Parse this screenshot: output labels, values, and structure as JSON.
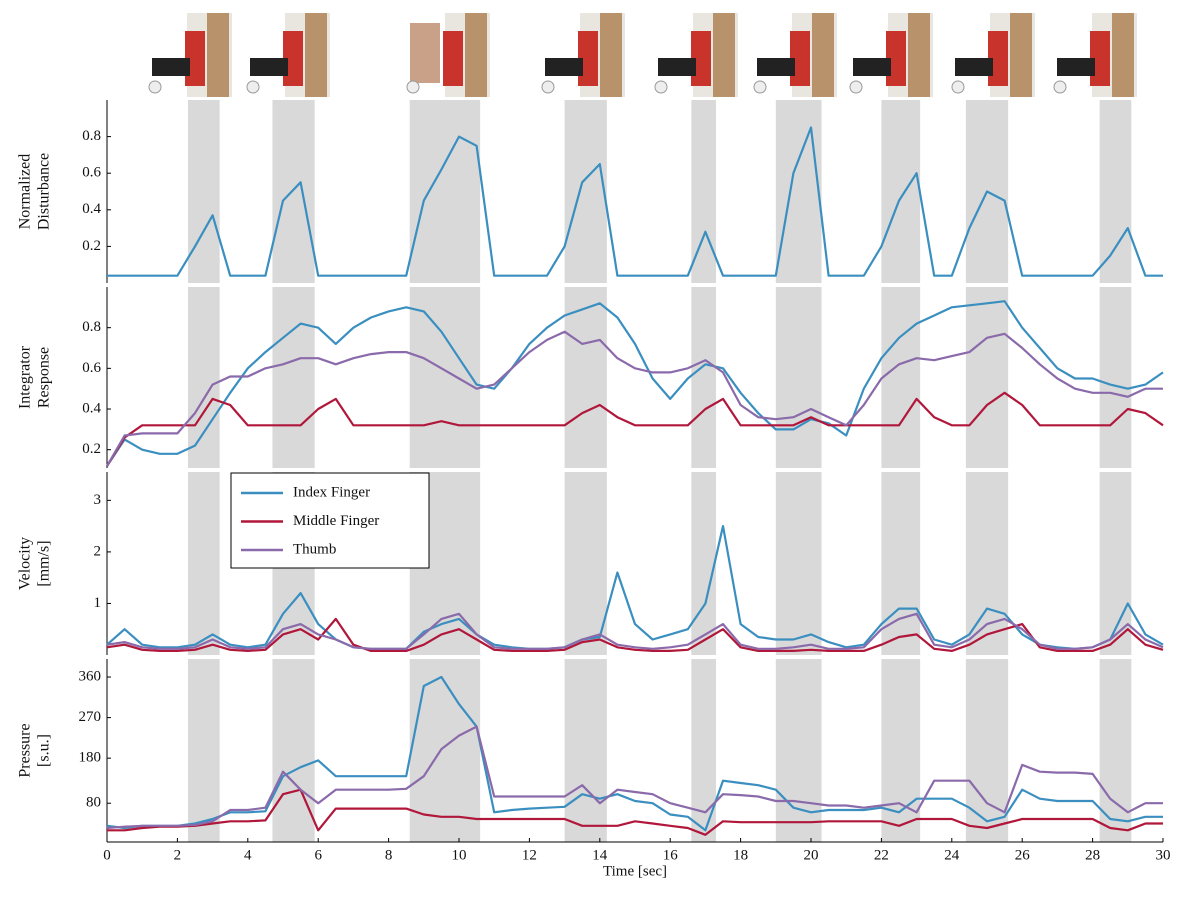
{
  "chart_data": [
    {
      "type": "line",
      "ylabel": [
        "Normalized",
        "Disturbance"
      ],
      "color": "#3a8fc0",
      "x": [
        0,
        0.5,
        1,
        1.5,
        2,
        2.5,
        3,
        3.5,
        4,
        4.5,
        5,
        5.5,
        6,
        6.5,
        7,
        7.5,
        8,
        8.5,
        9,
        9.5,
        10,
        10.5,
        11,
        11.5,
        12,
        12.5,
        13,
        13.5,
        14,
        14.5,
        15,
        15.5,
        16,
        16.5,
        17,
        17.5,
        18,
        18.5,
        19,
        19.5,
        20,
        20.5,
        21,
        21.5,
        22,
        22.5,
        23,
        23.5,
        24,
        24.5,
        25,
        25.5,
        26,
        26.5,
        27,
        27.5,
        28,
        28.5,
        29,
        29.5,
        30
      ],
      "values": [
        0.04,
        0.04,
        0.04,
        0.04,
        0.04,
        0.2,
        0.37,
        0.04,
        0.04,
        0.04,
        0.45,
        0.55,
        0.04,
        0.04,
        0.04,
        0.04,
        0.04,
        0.04,
        0.45,
        0.62,
        0.8,
        0.75,
        0.04,
        0.04,
        0.04,
        0.04,
        0.2,
        0.55,
        0.65,
        0.04,
        0.04,
        0.04,
        0.04,
        0.04,
        0.28,
        0.04,
        0.04,
        0.04,
        0.04,
        0.6,
        0.85,
        0.04,
        0.04,
        0.04,
        0.2,
        0.45,
        0.6,
        0.04,
        0.04,
        0.3,
        0.5,
        0.45,
        0.04,
        0.04,
        0.04,
        0.04,
        0.04,
        0.15,
        0.3,
        0.04,
        0.04
      ],
      "xlim": [
        0,
        30
      ],
      "ylim": [
        0,
        1.0
      ],
      "yticks": [
        0.2,
        0.4,
        0.6,
        0.8
      ],
      "highlight_spans": [
        [
          2.3,
          3.2
        ],
        [
          4.7,
          5.9
        ],
        [
          8.6,
          10.6
        ],
        [
          13.0,
          14.2
        ],
        [
          16.6,
          17.3
        ],
        [
          19.0,
          20.3
        ],
        [
          22.0,
          23.1
        ],
        [
          24.4,
          25.6
        ],
        [
          28.2,
          29.1
        ]
      ]
    },
    {
      "type": "line",
      "ylabel": [
        "Integrator",
        "Response"
      ],
      "x": [
        0,
        0.5,
        1,
        1.5,
        2,
        2.5,
        3,
        3.5,
        4,
        4.5,
        5,
        5.5,
        6,
        6.5,
        7,
        7.5,
        8,
        8.5,
        9,
        9.5,
        10,
        10.5,
        11,
        11.5,
        12,
        12.5,
        13,
        13.5,
        14,
        14.5,
        15,
        15.5,
        16,
        16.5,
        17,
        17.5,
        18,
        18.5,
        19,
        19.5,
        20,
        20.5,
        21,
        21.5,
        22,
        22.5,
        23,
        23.5,
        24,
        24.5,
        25,
        25.5,
        26,
        26.5,
        27,
        27.5,
        28,
        28.5,
        29,
        29.5,
        30
      ],
      "series": [
        {
          "color": "#3a8fc0",
          "values": [
            0.12,
            0.25,
            0.2,
            0.18,
            0.18,
            0.22,
            0.35,
            0.48,
            0.6,
            0.68,
            0.75,
            0.82,
            0.8,
            0.72,
            0.8,
            0.85,
            0.88,
            0.9,
            0.88,
            0.78,
            0.65,
            0.52,
            0.5,
            0.6,
            0.72,
            0.8,
            0.86,
            0.89,
            0.92,
            0.85,
            0.72,
            0.55,
            0.45,
            0.55,
            0.62,
            0.6,
            0.48,
            0.38,
            0.3,
            0.3,
            0.35,
            0.33,
            0.27,
            0.5,
            0.65,
            0.75,
            0.82,
            0.86,
            0.9,
            0.91,
            0.92,
            0.93,
            0.8,
            0.7,
            0.6,
            0.55,
            0.55,
            0.52,
            0.5,
            0.52,
            0.58
          ]
        },
        {
          "color": "#b0173a",
          "values": [
            0.12,
            0.26,
            0.32,
            0.32,
            0.32,
            0.32,
            0.45,
            0.42,
            0.32,
            0.32,
            0.32,
            0.32,
            0.4,
            0.45,
            0.32,
            0.32,
            0.32,
            0.32,
            0.32,
            0.34,
            0.32,
            0.32,
            0.32,
            0.32,
            0.32,
            0.32,
            0.32,
            0.38,
            0.42,
            0.36,
            0.32,
            0.32,
            0.32,
            0.32,
            0.4,
            0.45,
            0.32,
            0.32,
            0.32,
            0.32,
            0.36,
            0.32,
            0.32,
            0.32,
            0.32,
            0.32,
            0.45,
            0.36,
            0.32,
            0.32,
            0.42,
            0.48,
            0.42,
            0.32,
            0.32,
            0.32,
            0.32,
            0.32,
            0.4,
            0.38,
            0.32
          ]
        },
        {
          "color": "#8a6aaa",
          "values": [
            0.12,
            0.27,
            0.28,
            0.28,
            0.28,
            0.38,
            0.52,
            0.56,
            0.56,
            0.6,
            0.62,
            0.65,
            0.65,
            0.62,
            0.65,
            0.67,
            0.68,
            0.68,
            0.65,
            0.6,
            0.55,
            0.5,
            0.52,
            0.6,
            0.68,
            0.74,
            0.78,
            0.72,
            0.74,
            0.65,
            0.6,
            0.58,
            0.58,
            0.6,
            0.64,
            0.58,
            0.42,
            0.36,
            0.35,
            0.36,
            0.4,
            0.36,
            0.32,
            0.42,
            0.55,
            0.62,
            0.65,
            0.64,
            0.66,
            0.68,
            0.75,
            0.77,
            0.7,
            0.62,
            0.55,
            0.5,
            0.48,
            0.48,
            0.46,
            0.5,
            0.5
          ]
        }
      ],
      "xlim": [
        0,
        30
      ],
      "ylim": [
        0.11,
        1.0
      ],
      "yticks": [
        0.2,
        0.4,
        0.6,
        0.8
      ],
      "highlight_spans": [
        [
          2.3,
          3.2
        ],
        [
          4.7,
          5.9
        ],
        [
          8.6,
          10.6
        ],
        [
          13.0,
          14.2
        ],
        [
          16.6,
          17.3
        ],
        [
          19.0,
          20.3
        ],
        [
          22.0,
          23.1
        ],
        [
          24.4,
          25.6
        ],
        [
          28.2,
          29.1
        ]
      ]
    },
    {
      "type": "line",
      "ylabel": [
        "Velocity",
        "[mm/s]"
      ],
      "legend": "upper left",
      "x": [
        0,
        0.5,
        1,
        1.5,
        2,
        2.5,
        3,
        3.5,
        4,
        4.5,
        5,
        5.5,
        6,
        6.5,
        7,
        7.5,
        8,
        8.5,
        9,
        9.5,
        10,
        10.5,
        11,
        11.5,
        12,
        12.5,
        13,
        13.5,
        14,
        14.5,
        15,
        15.5,
        16,
        16.5,
        17,
        17.5,
        18,
        18.5,
        19,
        19.5,
        20,
        20.5,
        21,
        21.5,
        22,
        22.5,
        23,
        23.5,
        24,
        24.5,
        25,
        25.5,
        26,
        26.5,
        27,
        27.5,
        28,
        28.5,
        29,
        29.5,
        30
      ],
      "series": [
        {
          "name": "Index Finger",
          "color": "#3a8fc0",
          "values": [
            0.2,
            0.5,
            0.2,
            0.15,
            0.15,
            0.2,
            0.4,
            0.2,
            0.15,
            0.2,
            0.8,
            1.2,
            0.6,
            0.3,
            0.15,
            0.12,
            0.12,
            0.12,
            0.45,
            0.6,
            0.7,
            0.4,
            0.2,
            0.15,
            0.12,
            0.12,
            0.15,
            0.3,
            0.35,
            1.6,
            0.6,
            0.3,
            0.4,
            0.5,
            1.0,
            2.5,
            0.6,
            0.35,
            0.3,
            0.3,
            0.4,
            0.25,
            0.15,
            0.2,
            0.6,
            0.9,
            0.9,
            0.3,
            0.2,
            0.4,
            0.9,
            0.8,
            0.4,
            0.2,
            0.15,
            0.12,
            0.15,
            0.3,
            1.0,
            0.4,
            0.2
          ]
        },
        {
          "name": "Middle Finger",
          "color": "#b0173a",
          "values": [
            0.15,
            0.2,
            0.1,
            0.08,
            0.08,
            0.1,
            0.2,
            0.1,
            0.08,
            0.1,
            0.4,
            0.5,
            0.3,
            0.7,
            0.2,
            0.08,
            0.08,
            0.08,
            0.2,
            0.4,
            0.5,
            0.3,
            0.1,
            0.08,
            0.08,
            0.08,
            0.1,
            0.25,
            0.3,
            0.15,
            0.1,
            0.08,
            0.08,
            0.1,
            0.3,
            0.5,
            0.15,
            0.08,
            0.08,
            0.08,
            0.1,
            0.08,
            0.08,
            0.08,
            0.2,
            0.35,
            0.4,
            0.12,
            0.08,
            0.2,
            0.4,
            0.5,
            0.6,
            0.15,
            0.08,
            0.08,
            0.08,
            0.2,
            0.5,
            0.2,
            0.1
          ]
        },
        {
          "name": "Thumb",
          "color": "#8a6aaa",
          "values": [
            0.2,
            0.25,
            0.15,
            0.12,
            0.12,
            0.15,
            0.3,
            0.15,
            0.12,
            0.15,
            0.5,
            0.6,
            0.4,
            0.3,
            0.15,
            0.12,
            0.12,
            0.12,
            0.4,
            0.7,
            0.8,
            0.4,
            0.15,
            0.12,
            0.12,
            0.12,
            0.15,
            0.3,
            0.4,
            0.2,
            0.15,
            0.12,
            0.15,
            0.2,
            0.4,
            0.6,
            0.2,
            0.12,
            0.12,
            0.15,
            0.2,
            0.12,
            0.12,
            0.15,
            0.5,
            0.7,
            0.8,
            0.2,
            0.15,
            0.3,
            0.6,
            0.7,
            0.5,
            0.2,
            0.12,
            0.12,
            0.15,
            0.3,
            0.6,
            0.3,
            0.15
          ]
        }
      ],
      "xlim": [
        0,
        30
      ],
      "ylim": [
        0,
        3.55
      ],
      "yticks": [
        1,
        2,
        3
      ],
      "highlight_spans": [
        [
          2.3,
          3.2
        ],
        [
          4.7,
          5.9
        ],
        [
          8.6,
          10.6
        ],
        [
          13.0,
          14.2
        ],
        [
          16.6,
          17.3
        ],
        [
          19.0,
          20.3
        ],
        [
          22.0,
          23.1
        ],
        [
          24.4,
          25.6
        ],
        [
          28.2,
          29.1
        ]
      ]
    },
    {
      "type": "line",
      "ylabel": [
        "Pressure",
        "[s.u.]"
      ],
      "xlabel": "Time [sec]",
      "x": [
        0,
        0.5,
        1,
        1.5,
        2,
        2.5,
        3,
        3.5,
        4,
        4.5,
        5,
        5.5,
        6,
        6.5,
        7,
        7.5,
        8,
        8.5,
        9,
        9.5,
        10,
        10.5,
        11,
        11.5,
        12,
        12.5,
        13,
        13.5,
        14,
        14.5,
        15,
        15.5,
        16,
        16.5,
        17,
        17.5,
        18,
        18.5,
        19,
        19.5,
        20,
        20.5,
        21,
        21.5,
        22,
        22.5,
        23,
        23.5,
        24,
        24.5,
        25,
        25.5,
        26,
        26.5,
        27,
        27.5,
        28,
        28.5,
        29,
        29.5,
        30
      ],
      "series": [
        {
          "color": "#3a8fc0",
          "values": [
            30,
            25,
            30,
            30,
            30,
            35,
            45,
            60,
            60,
            62,
            140,
            160,
            175,
            140,
            140,
            140,
            140,
            140,
            340,
            360,
            300,
            250,
            60,
            65,
            68,
            70,
            72,
            100,
            90,
            100,
            85,
            80,
            55,
            50,
            20,
            130,
            125,
            120,
            110,
            70,
            60,
            65,
            65,
            65,
            70,
            60,
            90,
            90,
            90,
            70,
            40,
            50,
            110,
            90,
            85,
            85,
            85,
            45,
            40,
            50,
            50
          ]
        },
        {
          "color": "#b0173a",
          "values": [
            20,
            20,
            25,
            28,
            28,
            30,
            35,
            40,
            40,
            42,
            100,
            110,
            20,
            68,
            68,
            68,
            68,
            68,
            55,
            50,
            50,
            45,
            45,
            45,
            45,
            45,
            45,
            30,
            30,
            30,
            40,
            35,
            30,
            25,
            10,
            40,
            38,
            38,
            38,
            38,
            38,
            40,
            40,
            40,
            40,
            30,
            45,
            45,
            45,
            30,
            25,
            35,
            45,
            45,
            45,
            45,
            45,
            25,
            20,
            35,
            35
          ]
        },
        {
          "color": "#8a6aaa",
          "values": [
            25,
            28,
            30,
            30,
            30,
            32,
            40,
            65,
            65,
            70,
            150,
            110,
            80,
            110,
            110,
            110,
            110,
            112,
            140,
            200,
            230,
            250,
            95,
            95,
            95,
            95,
            95,
            120,
            80,
            110,
            105,
            100,
            80,
            70,
            60,
            100,
            98,
            95,
            85,
            85,
            80,
            75,
            75,
            70,
            75,
            80,
            60,
            130,
            130,
            130,
            80,
            60,
            165,
            150,
            148,
            148,
            145,
            90,
            60,
            80,
            80
          ]
        }
      ],
      "xlim": [
        0,
        30
      ],
      "ylim": [
        -6,
        400
      ],
      "yticks": [
        80,
        180,
        270,
        360
      ],
      "xticks": [
        0,
        2,
        4,
        6,
        8,
        10,
        12,
        14,
        16,
        18,
        20,
        22,
        24,
        26,
        28,
        30
      ],
      "highlight_spans": [
        [
          2.3,
          3.2
        ],
        [
          4.7,
          5.9
        ],
        [
          8.6,
          10.6
        ],
        [
          13.0,
          14.2
        ],
        [
          16.6,
          17.3
        ],
        [
          19.0,
          20.3
        ],
        [
          22.0,
          23.1
        ],
        [
          24.4,
          25.6
        ],
        [
          28.2,
          29.1
        ]
      ]
    }
  ]
}
